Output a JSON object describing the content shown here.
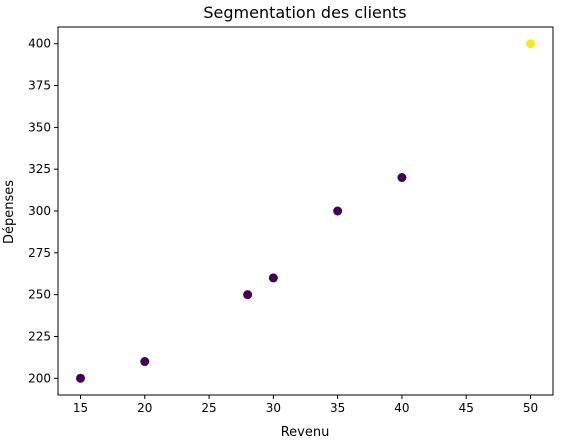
{
  "chart_data": {
    "type": "scatter",
    "title": "Segmentation des clients",
    "xlabel": "Revenu",
    "ylabel": "Dépenses",
    "xlim": [
      13.25,
      51.75
    ],
    "ylim": [
      190,
      410
    ],
    "xticks": [
      15,
      20,
      25,
      30,
      35,
      40,
      45,
      50
    ],
    "yticks": [
      200,
      225,
      250,
      275,
      300,
      325,
      350,
      375,
      400
    ],
    "grid": false,
    "points": [
      {
        "x": 15,
        "y": 200,
        "cluster": 0
      },
      {
        "x": 20,
        "y": 210,
        "cluster": 0
      },
      {
        "x": 28,
        "y": 250,
        "cluster": 0
      },
      {
        "x": 30,
        "y": 260,
        "cluster": 0
      },
      {
        "x": 35,
        "y": 300,
        "cluster": 0
      },
      {
        "x": 40,
        "y": 320,
        "cluster": 0
      },
      {
        "x": 50,
        "y": 400,
        "cluster": 1
      }
    ],
    "cluster_colors": [
      "#440154",
      "#fde725"
    ]
  }
}
